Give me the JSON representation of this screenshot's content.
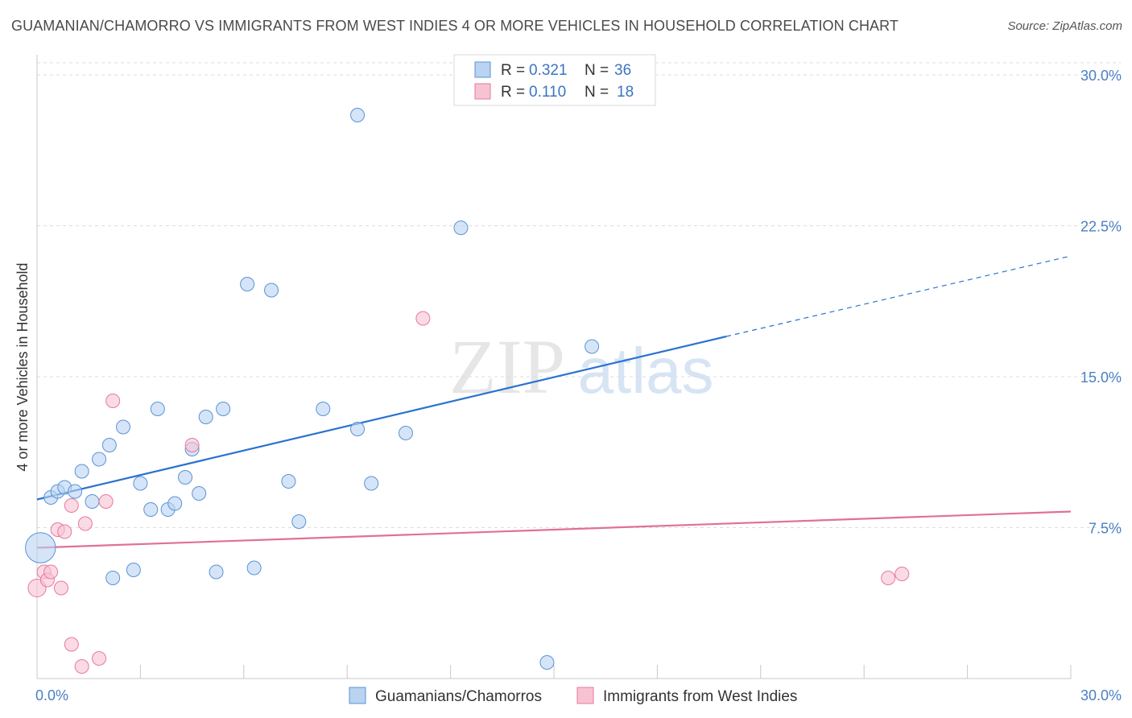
{
  "title": "GUAMANIAN/CHAMORRO VS IMMIGRANTS FROM WEST INDIES 4 OR MORE VEHICLES IN HOUSEHOLD CORRELATION CHART",
  "source": "Source: ZipAtlas.com",
  "watermark": {
    "zip": "ZIP",
    "atlas": "atlas"
  },
  "colors": {
    "blue": "#5b93d6",
    "blue_fill": "#b9d3f1",
    "blue_line": "#2a72d0",
    "pink": "#e9789a",
    "pink_fill": "#f7c3d3",
    "pink_line": "#e0709a",
    "tick": "#4b7fc4"
  },
  "legend": {
    "rows": [
      {
        "r_label": "R =",
        "r_value": "0.321",
        "n_label": "N =",
        "n_value": "36"
      },
      {
        "r_label": "R =",
        "r_value": "0.110",
        "n_label": "N =",
        "n_value": "18"
      }
    ]
  },
  "chart_data": {
    "type": "scatter",
    "title": "GUAMANIAN/CHAMORRO VS IMMIGRANTS FROM WEST INDIES 4 OR MORE VEHICLES IN HOUSEHOLD CORRELATION CHART",
    "xlabel": "",
    "ylabel": "4 or more Vehicles in Household",
    "xlim": [
      0,
      30
    ],
    "ylim": [
      0,
      31
    ],
    "x_tick_labels": [
      "0.0%",
      "30.0%"
    ],
    "y_ticks": [
      7.5,
      15.0,
      22.5,
      30.0
    ],
    "y_tick_labels": [
      "7.5%",
      "15.0%",
      "22.5%",
      "30.0%"
    ],
    "grid": true,
    "legend_position": "bottom",
    "series": [
      {
        "name": "Guamanians/Chamorros",
        "color": "blue",
        "r": 0.321,
        "n": 36,
        "trend": {
          "x0": 0,
          "y0": 8.9,
          "x1": 20,
          "y1": 17.0,
          "dash_to_x": 30,
          "dash_to_y": 21.0
        },
        "points": [
          {
            "x": 0.1,
            "y": 6.5,
            "s": 2.2
          },
          {
            "x": 0.4,
            "y": 9.0,
            "s": 1
          },
          {
            "x": 0.6,
            "y": 9.3,
            "s": 1
          },
          {
            "x": 0.8,
            "y": 9.5,
            "s": 1
          },
          {
            "x": 1.1,
            "y": 9.3,
            "s": 1
          },
          {
            "x": 1.3,
            "y": 10.3,
            "s": 1
          },
          {
            "x": 1.6,
            "y": 8.8,
            "s": 1
          },
          {
            "x": 1.8,
            "y": 10.9,
            "s": 1
          },
          {
            "x": 2.1,
            "y": 11.6,
            "s": 1
          },
          {
            "x": 2.2,
            "y": 5.0,
            "s": 1
          },
          {
            "x": 2.5,
            "y": 12.5,
            "s": 1
          },
          {
            "x": 2.8,
            "y": 5.4,
            "s": 1
          },
          {
            "x": 3.0,
            "y": 9.7,
            "s": 1
          },
          {
            "x": 3.3,
            "y": 8.4,
            "s": 1
          },
          {
            "x": 3.5,
            "y": 13.4,
            "s": 1
          },
          {
            "x": 3.8,
            "y": 8.4,
            "s": 1
          },
          {
            "x": 4.0,
            "y": 8.7,
            "s": 1
          },
          {
            "x": 4.3,
            "y": 10.0,
            "s": 1
          },
          {
            "x": 4.5,
            "y": 11.4,
            "s": 1
          },
          {
            "x": 4.7,
            "y": 9.2,
            "s": 1
          },
          {
            "x": 4.9,
            "y": 13.0,
            "s": 1
          },
          {
            "x": 5.2,
            "y": 5.3,
            "s": 1
          },
          {
            "x": 5.4,
            "y": 13.4,
            "s": 1
          },
          {
            "x": 6.1,
            "y": 19.6,
            "s": 1
          },
          {
            "x": 6.3,
            "y": 5.5,
            "s": 1
          },
          {
            "x": 6.8,
            "y": 19.3,
            "s": 1
          },
          {
            "x": 7.3,
            "y": 9.8,
            "s": 1
          },
          {
            "x": 7.6,
            "y": 7.8,
            "s": 1
          },
          {
            "x": 8.3,
            "y": 13.4,
            "s": 1
          },
          {
            "x": 9.3,
            "y": 28.0,
            "s": 1
          },
          {
            "x": 9.3,
            "y": 12.4,
            "s": 1
          },
          {
            "x": 9.7,
            "y": 9.7,
            "s": 1
          },
          {
            "x": 10.7,
            "y": 12.2,
            "s": 1
          },
          {
            "x": 12.3,
            "y": 22.4,
            "s": 1
          },
          {
            "x": 14.8,
            "y": 0.8,
            "s": 1
          },
          {
            "x": 16.1,
            "y": 16.5,
            "s": 1
          }
        ]
      },
      {
        "name": "Immigrants from West Indies",
        "color": "pink",
        "r": 0.11,
        "n": 18,
        "trend": {
          "x0": 0,
          "y0": 6.5,
          "x1": 30,
          "y1": 8.3
        },
        "points": [
          {
            "x": 0.0,
            "y": 4.5,
            "s": 1.3
          },
          {
            "x": 0.2,
            "y": 5.3,
            "s": 1
          },
          {
            "x": 0.3,
            "y": 4.9,
            "s": 1
          },
          {
            "x": 0.4,
            "y": 5.3,
            "s": 1
          },
          {
            "x": 0.6,
            "y": 7.4,
            "s": 1
          },
          {
            "x": 0.7,
            "y": 4.5,
            "s": 1
          },
          {
            "x": 0.8,
            "y": 7.3,
            "s": 1
          },
          {
            "x": 1.0,
            "y": 1.7,
            "s": 1
          },
          {
            "x": 1.0,
            "y": 8.6,
            "s": 1
          },
          {
            "x": 1.3,
            "y": 0.6,
            "s": 1
          },
          {
            "x": 1.4,
            "y": 7.7,
            "s": 1
          },
          {
            "x": 1.8,
            "y": 1.0,
            "s": 1
          },
          {
            "x": 2.0,
            "y": 8.8,
            "s": 1
          },
          {
            "x": 2.2,
            "y": 13.8,
            "s": 1
          },
          {
            "x": 4.5,
            "y": 11.6,
            "s": 1
          },
          {
            "x": 11.2,
            "y": 17.9,
            "s": 1
          },
          {
            "x": 24.7,
            "y": 5.0,
            "s": 1
          },
          {
            "x": 25.1,
            "y": 5.2,
            "s": 1
          }
        ]
      }
    ]
  }
}
